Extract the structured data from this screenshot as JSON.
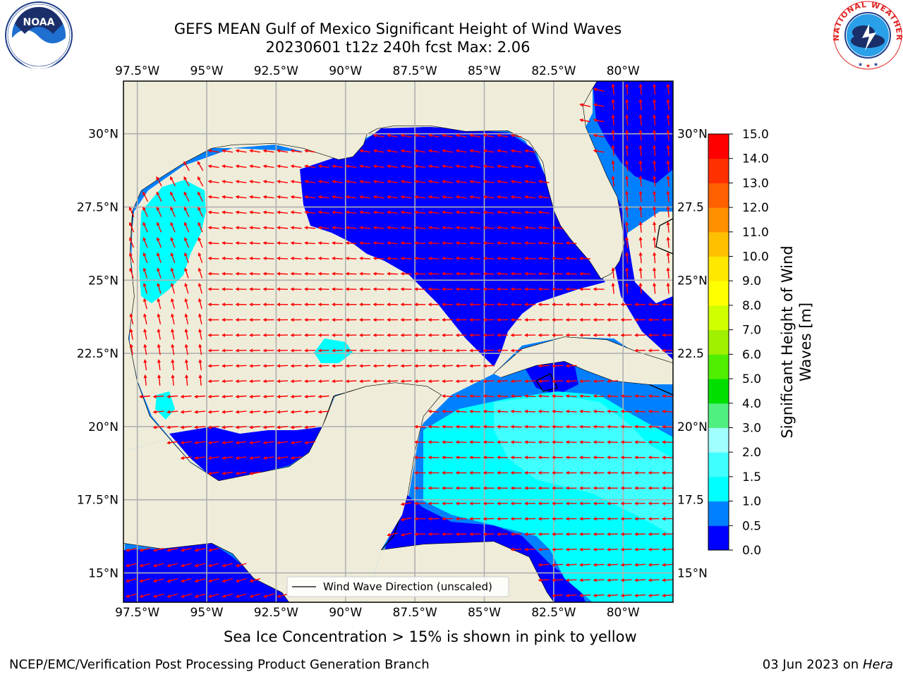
{
  "header": {
    "title_line1": "GEFS MEAN Gulf of Mexico Significant Height of Wind Waves",
    "title_line2": "20230601 t12z 240h fcst   Max: 2.06"
  },
  "logos": {
    "left": {
      "name": "noaa-logo",
      "text": "NOAA"
    },
    "right": {
      "name": "nws-logo",
      "text": "NATIONAL WEATHER SERVICE"
    }
  },
  "map": {
    "lon_labels": [
      "97.5°W",
      "95°W",
      "92.5°W",
      "90°W",
      "87.5°W",
      "85°W",
      "82.5°W",
      "80°W"
    ],
    "lon_values": [
      -97.5,
      -95,
      -92.5,
      -90,
      -87.5,
      -85,
      -82.5,
      -80
    ],
    "lat_labels": [
      "30°N",
      "27.5°N",
      "25°N",
      "22.5°N",
      "20°N",
      "17.5°N",
      "15°N"
    ],
    "lat_values": [
      30,
      27.5,
      25,
      22.5,
      20,
      17.5,
      15
    ],
    "right_lat_labels": [
      "30°N",
      "27.5",
      "25°N",
      "22.5",
      "20°N",
      "17.5",
      "15°N"
    ],
    "extent": {
      "lon_min": -98,
      "lon_max": -78.2,
      "lat_min": 14,
      "lat_max": 31.8
    },
    "colors": {
      "land": "#efedda",
      "grid": "#b0b0b0",
      "arrow": "#ff0000",
      "coast": "#000000"
    },
    "legend_label": "Wind Wave Direction (unscaled)",
    "predominant_direction": "westward"
  },
  "colorbar": {
    "label_line1": "Significant Height of Wind",
    "label_line2": "Waves [m]",
    "ticks": [
      "0.0",
      "0.5",
      "1.0",
      "1.5",
      "2.0",
      "3.0",
      "4.0",
      "5.0",
      "6.0",
      "7.0",
      "8.0",
      "9.0",
      "10.0",
      "11.0",
      "12.0",
      "13.0",
      "14.0",
      "15.0"
    ],
    "colors": [
      "#0000ff",
      "#0080ff",
      "#00ffff",
      "#40ffff",
      "#a0ffff",
      "#50f080",
      "#00e000",
      "#50ee00",
      "#a0f000",
      "#d0ff00",
      "#ffff00",
      "#ffe800",
      "#ffc000",
      "#ff9000",
      "#ff6000",
      "#ff3000",
      "#ff0000"
    ]
  },
  "notes": {
    "sea_ice": "Sea Ice Concentration > 15% is shown in pink to yellow"
  },
  "footer": {
    "left": "NCEP/EMC/Verification Post Processing Product Generation Branch",
    "date": "03 Jun 2023 on ",
    "machine": "Hera"
  }
}
